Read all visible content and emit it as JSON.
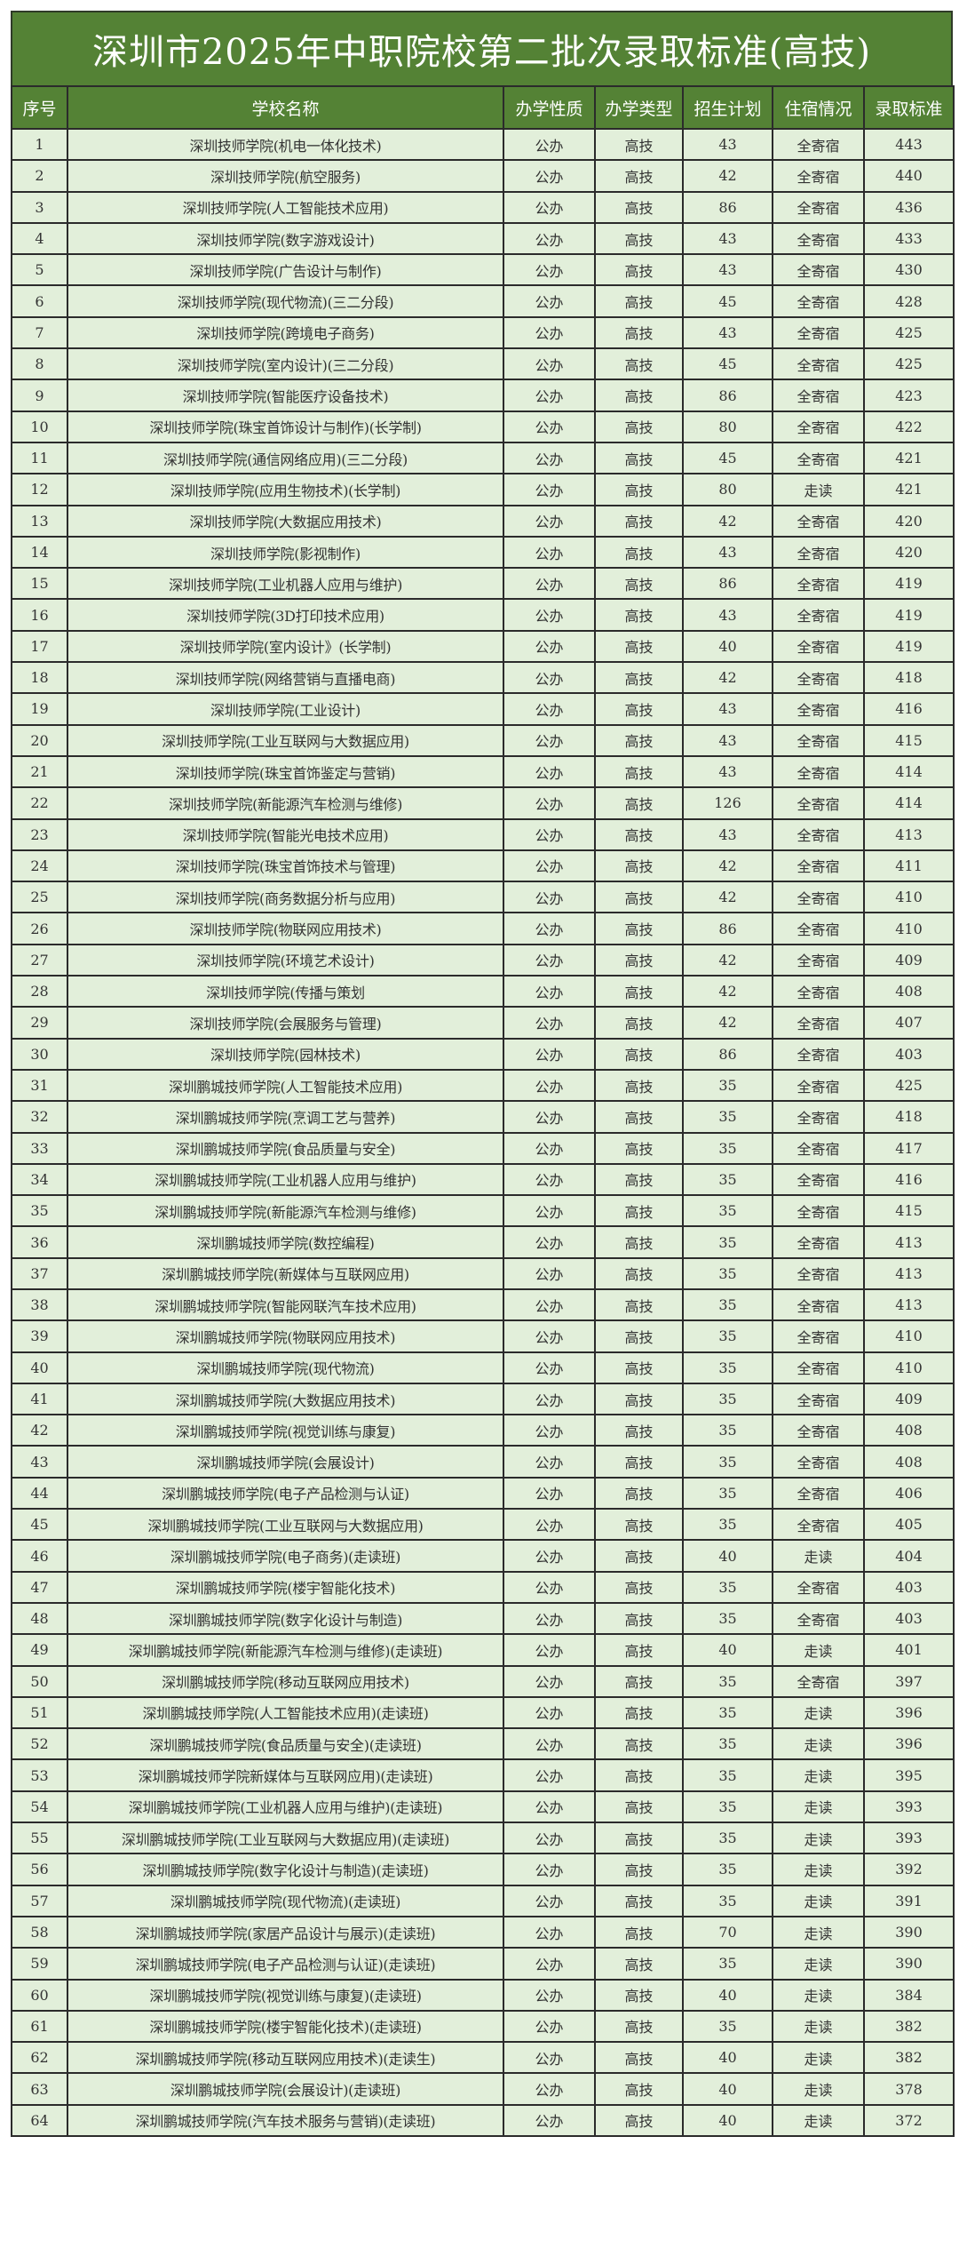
{
  "title": "深圳市2025年中职院校第二批次录取标准(高技)",
  "colors": {
    "header_bg": "#548235",
    "row_bg": "#e2efda",
    "border": "#2b2b2b"
  },
  "columns": [
    "序号",
    "学校名称",
    "办学性质",
    "办学类型",
    "招生计划",
    "住宿情况",
    "录取标准"
  ],
  "rows": [
    [
      "1",
      "深圳技师学院(机电一体化技术)",
      "公办",
      "高技",
      "43",
      "全寄宿",
      "443"
    ],
    [
      "2",
      "深圳技师学院(航空服务)",
      "公办",
      "高技",
      "42",
      "全寄宿",
      "440"
    ],
    [
      "3",
      "深圳技师学院(人工智能技术应用)",
      "公办",
      "高技",
      "86",
      "全寄宿",
      "436"
    ],
    [
      "4",
      "深圳技师学院(数字游戏设计)",
      "公办",
      "高技",
      "43",
      "全寄宿",
      "433"
    ],
    [
      "5",
      "深圳技师学院(广告设计与制作)",
      "公办",
      "高技",
      "43",
      "全寄宿",
      "430"
    ],
    [
      "6",
      "深圳技师学院(现代物流)(三二分段)",
      "公办",
      "高技",
      "45",
      "全寄宿",
      "428"
    ],
    [
      "7",
      "深圳技师学院(跨境电子商务)",
      "公办",
      "高技",
      "43",
      "全寄宿",
      "425"
    ],
    [
      "8",
      "深圳技师学院(室内设计)(三二分段)",
      "公办",
      "高技",
      "45",
      "全寄宿",
      "425"
    ],
    [
      "9",
      "深圳技师学院(智能医疗设备技术)",
      "公办",
      "高技",
      "86",
      "全寄宿",
      "423"
    ],
    [
      "10",
      "深圳技师学院(珠宝首饰设计与制作)(长学制)",
      "公办",
      "高技",
      "80",
      "全寄宿",
      "422"
    ],
    [
      "11",
      "深圳技师学院(通信网络应用)(三二分段)",
      "公办",
      "高技",
      "45",
      "全寄宿",
      "421"
    ],
    [
      "12",
      "深圳技师学院(应用生物技术)(长学制)",
      "公办",
      "高技",
      "80",
      "走读",
      "421"
    ],
    [
      "13",
      "深圳技师学院(大数据应用技术)",
      "公办",
      "高技",
      "42",
      "全寄宿",
      "420"
    ],
    [
      "14",
      "深圳技师学院(影视制作)",
      "公办",
      "高技",
      "43",
      "全寄宿",
      "420"
    ],
    [
      "15",
      "深圳技师学院(工业机器人应用与维护)",
      "公办",
      "高技",
      "86",
      "全寄宿",
      "419"
    ],
    [
      "16",
      "深圳技师学院(3D打印技术应用)",
      "公办",
      "高技",
      "43",
      "全寄宿",
      "419"
    ],
    [
      "17",
      "深圳技师学院(室内设计》(长学制)",
      "公办",
      "高技",
      "40",
      "全寄宿",
      "419"
    ],
    [
      "18",
      "深圳技师学院(网络营销与直播电商)",
      "公办",
      "高技",
      "42",
      "全寄宿",
      "418"
    ],
    [
      "19",
      "深圳技师学院(工业设计)",
      "公办",
      "高技",
      "43",
      "全寄宿",
      "416"
    ],
    [
      "20",
      "深圳技师学院(工业互联网与大数据应用)",
      "公办",
      "高技",
      "43",
      "全寄宿",
      "415"
    ],
    [
      "21",
      "深圳技师学院(珠宝首饰鉴定与营销)",
      "公办",
      "高技",
      "43",
      "全寄宿",
      "414"
    ],
    [
      "22",
      "深圳技师学院(新能源汽车检测与维修)",
      "公办",
      "高技",
      "126",
      "全寄宿",
      "414"
    ],
    [
      "23",
      "深圳技师学院(智能光电技术应用)",
      "公办",
      "高技",
      "43",
      "全寄宿",
      "413"
    ],
    [
      "24",
      "深圳技师学院(珠宝首饰技术与管理)",
      "公办",
      "高技",
      "42",
      "全寄宿",
      "411"
    ],
    [
      "25",
      "深圳技师学院(商务数据分析与应用)",
      "公办",
      "高技",
      "42",
      "全寄宿",
      "410"
    ],
    [
      "26",
      "深圳技师学院(物联网应用技术)",
      "公办",
      "高技",
      "86",
      "全寄宿",
      "410"
    ],
    [
      "27",
      "深圳技师学院(环境艺术设计)",
      "公办",
      "高技",
      "42",
      "全寄宿",
      "409"
    ],
    [
      "28",
      "深圳技师学院(传播与策划",
      "公办",
      "高技",
      "42",
      "全寄宿",
      "408"
    ],
    [
      "29",
      "深圳技师学院(会展服务与管理)",
      "公办",
      "高技",
      "42",
      "全寄宿",
      "407"
    ],
    [
      "30",
      "深圳技师学院(园林技术)",
      "公办",
      "高技",
      "86",
      "全寄宿",
      "403"
    ],
    [
      "31",
      "深圳鹏城技师学院(人工智能技术应用)",
      "公办",
      "高技",
      "35",
      "全寄宿",
      "425"
    ],
    [
      "32",
      "深圳鹏城技师学院(烹调工艺与营养)",
      "公办",
      "高技",
      "35",
      "全寄宿",
      "418"
    ],
    [
      "33",
      "深圳鹏城技师学院(食品质量与安全)",
      "公办",
      "高技",
      "35",
      "全寄宿",
      "417"
    ],
    [
      "34",
      "深圳鹏城技师学院(工业机器人应用与维护)",
      "公办",
      "高技",
      "35",
      "全寄宿",
      "416"
    ],
    [
      "35",
      "深圳鹏城技师学院(新能源汽车检测与维修)",
      "公办",
      "高技",
      "35",
      "全寄宿",
      "415"
    ],
    [
      "36",
      "深圳鹏城技师学院(数控编程)",
      "公办",
      "高技",
      "35",
      "全寄宿",
      "413"
    ],
    [
      "37",
      "深圳鹏城技师学院(新媒体与互联网应用)",
      "公办",
      "高技",
      "35",
      "全寄宿",
      "413"
    ],
    [
      "38",
      "深圳鹏城技师学院(智能网联汽车技术应用)",
      "公办",
      "高技",
      "35",
      "全寄宿",
      "413"
    ],
    [
      "39",
      "深圳鹏城技师学院(物联网应用技术)",
      "公办",
      "高技",
      "35",
      "全寄宿",
      "410"
    ],
    [
      "40",
      "深圳鹏城技师学院(现代物流)",
      "公办",
      "高技",
      "35",
      "全寄宿",
      "410"
    ],
    [
      "41",
      "深圳鹏城技师学院(大数据应用技术)",
      "公办",
      "高技",
      "35",
      "全寄宿",
      "409"
    ],
    [
      "42",
      "深圳鹏城技师学院(视觉训练与康复)",
      "公办",
      "高技",
      "35",
      "全寄宿",
      "408"
    ],
    [
      "43",
      "深圳鹏城技师学院(会展设计)",
      "公办",
      "高技",
      "35",
      "全寄宿",
      "408"
    ],
    [
      "44",
      "深圳鹏城技师学院(电子产品检测与认证)",
      "公办",
      "高技",
      "35",
      "全寄宿",
      "406"
    ],
    [
      "45",
      "深圳鹏城技师学院(工业互联网与大数据应用)",
      "公办",
      "高技",
      "35",
      "全寄宿",
      "405"
    ],
    [
      "46",
      "深圳鹏城技师学院(电子商务)(走读班)",
      "公办",
      "高技",
      "40",
      "走读",
      "404"
    ],
    [
      "47",
      "深圳鹏城技师学院(楼宇智能化技术)",
      "公办",
      "高技",
      "35",
      "全寄宿",
      "403"
    ],
    [
      "48",
      "深圳鹏城技师学院(数字化设计与制造)",
      "公办",
      "高技",
      "35",
      "全寄宿",
      "403"
    ],
    [
      "49",
      "深圳鹏城技师学院(新能源汽车检测与维修)(走读班)",
      "公办",
      "高技",
      "40",
      "走读",
      "401"
    ],
    [
      "50",
      "深圳鹏城技师学院(移动互联网应用技术)",
      "公办",
      "高技",
      "35",
      "全寄宿",
      "397"
    ],
    [
      "51",
      "深圳鹏城技师学院(人工智能技术应用)(走读班)",
      "公办",
      "高技",
      "35",
      "走读",
      "396"
    ],
    [
      "52",
      "深圳鹏城技师学院(食品质量与安全)(走读班)",
      "公办",
      "高技",
      "35",
      "走读",
      "396"
    ],
    [
      "53",
      "深圳鹏城技师学院新媒体与互联网应用)(走读班)",
      "公办",
      "高技",
      "35",
      "走读",
      "395"
    ],
    [
      "54",
      "深圳鹏城技师学院(工业机器人应用与维护)(走读班)",
      "公办",
      "高技",
      "35",
      "走读",
      "393"
    ],
    [
      "55",
      "深圳鹏城技师学院(工业互联网与大数据应用)(走读班)",
      "公办",
      "高技",
      "35",
      "走读",
      "393"
    ],
    [
      "56",
      "深圳鹏城技师学院(数字化设计与制造)(走读班)",
      "公办",
      "高技",
      "35",
      "走读",
      "392"
    ],
    [
      "57",
      "深圳鹏城技师学院(现代物流)(走读班)",
      "公办",
      "高技",
      "35",
      "走读",
      "391"
    ],
    [
      "58",
      "深圳鹏城技师学院(家居产品设计与展示)(走读班)",
      "公办",
      "高技",
      "70",
      "走读",
      "390"
    ],
    [
      "59",
      "深圳鹏城技师学院(电子产品检测与认证)(走读班)",
      "公办",
      "高技",
      "35",
      "走读",
      "390"
    ],
    [
      "60",
      "深圳鹏城技师学院(视觉训练与康复)(走读班)",
      "公办",
      "高技",
      "40",
      "走读",
      "384"
    ],
    [
      "61",
      "深圳鹏城技师学院(楼宇智能化技术)(走读班)",
      "公办",
      "高技",
      "35",
      "走读",
      "382"
    ],
    [
      "62",
      "深圳鹏城技师学院(移动互联网应用技术)(走读生)",
      "公办",
      "高技",
      "40",
      "走读",
      "382"
    ],
    [
      "63",
      "深圳鹏城技师学院(会展设计)(走读班)",
      "公办",
      "高技",
      "40",
      "走读",
      "378"
    ],
    [
      "64",
      "深圳鹏城技师学院(汽车技术服务与营销)(走读班)",
      "公办",
      "高技",
      "40",
      "走读",
      "372"
    ]
  ]
}
